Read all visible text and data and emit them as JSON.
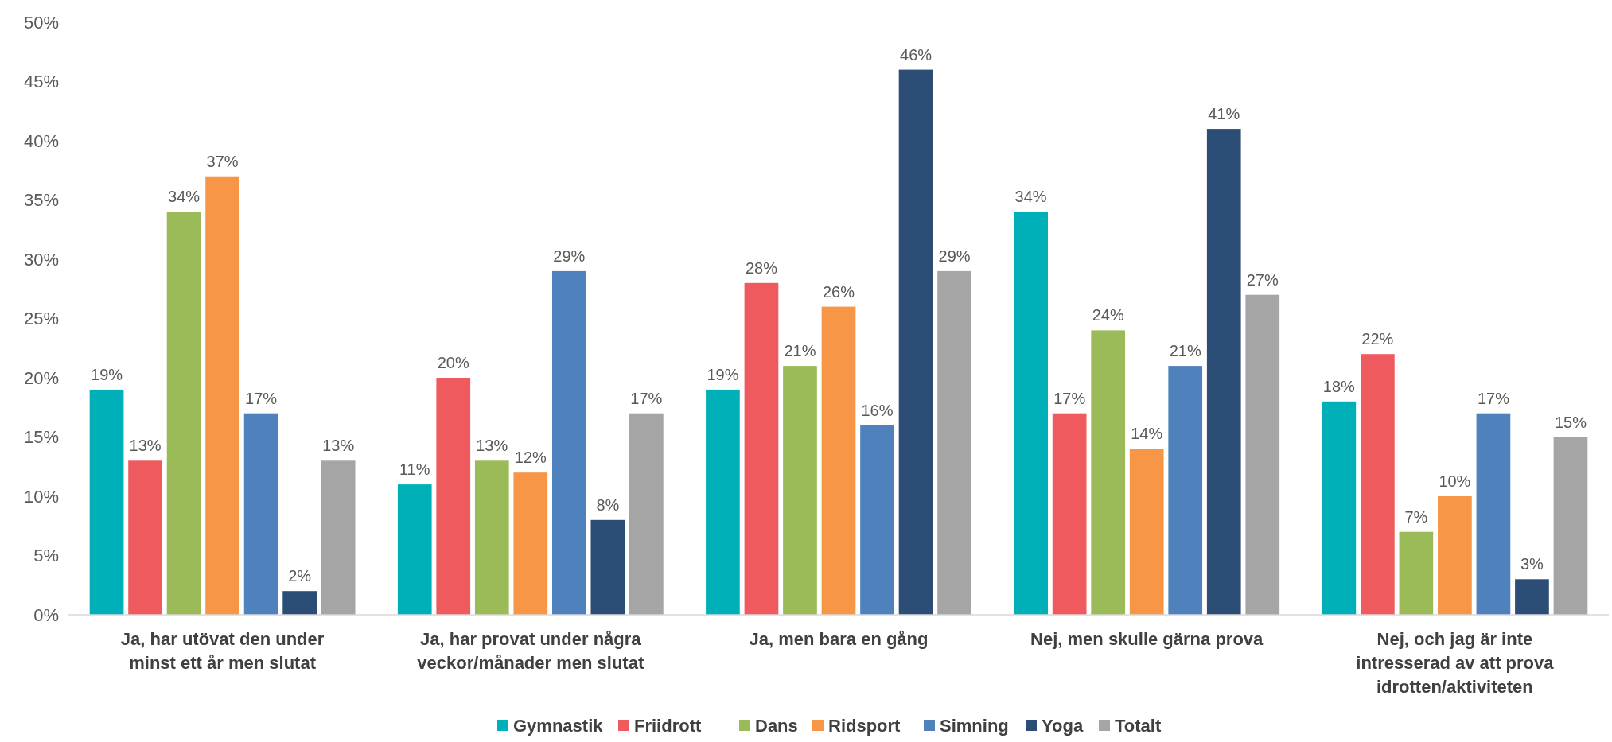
{
  "chart_data": {
    "type": "bar",
    "categories": [
      "Ja, har utövat den under minst ett år men slutat",
      "Ja, har provat under några veckor/månader men slutat",
      "Ja, men bara en gång",
      "Nej, men skulle gärna prova",
      "Nej, och jag är inte intresserad av att prova idrotten/aktiviteten"
    ],
    "series": [
      {
        "name": "Gymnastik",
        "color": "#00b0b9",
        "values": [
          19,
          11,
          19,
          34,
          18
        ],
        "value_labels": [
          "19%",
          "11%",
          "19%",
          "34%",
          "18%"
        ]
      },
      {
        "name": "Friidrott",
        "color": "#ef5a5f",
        "values": [
          13,
          20,
          28,
          17,
          22
        ],
        "value_labels": [
          "13%",
          "20%",
          "28%",
          "17%",
          "22%"
        ]
      },
      {
        "name": "Dans",
        "color": "#9bbb59",
        "values": [
          34,
          13,
          21,
          24,
          7
        ],
        "value_labels": [
          "34%",
          "13%",
          "21%",
          "24%",
          "7%"
        ]
      },
      {
        "name": "Ridsport",
        "color": "#f79646",
        "values": [
          37,
          12,
          26,
          14,
          10
        ],
        "value_labels": [
          "37%",
          "12%",
          "26%",
          "14%",
          "10%"
        ]
      },
      {
        "name": "Simning",
        "color": "#4f81bd",
        "values": [
          17,
          29,
          16,
          21,
          17
        ],
        "value_labels": [
          "17%",
          "29%",
          "16%",
          "21%",
          "17%"
        ]
      },
      {
        "name": "Yoga",
        "color": "#2c4d75",
        "values": [
          2,
          8,
          46,
          41,
          3
        ],
        "value_labels": [
          "2%",
          "8%",
          "46%",
          "41%",
          "3%"
        ]
      },
      {
        "name": "Totalt",
        "color": "#a5a5a5",
        "values": [
          13,
          17,
          29,
          27,
          15
        ],
        "value_labels": [
          "13%",
          "17%",
          "29%",
          "27%",
          "15%"
        ]
      }
    ],
    "ylim": [
      0,
      50
    ],
    "yticks": [
      {
        "value": 0,
        "label": "0%"
      },
      {
        "value": 5,
        "label": "5%"
      },
      {
        "value": 10,
        "label": "10%"
      },
      {
        "value": 15,
        "label": "15%"
      },
      {
        "value": 20,
        "label": "20%"
      },
      {
        "value": 25,
        "label": "25%"
      },
      {
        "value": 30,
        "label": "30%"
      },
      {
        "value": 35,
        "label": "35%"
      },
      {
        "value": 40,
        "label": "40%"
      },
      {
        "value": 45,
        "label": "45%"
      },
      {
        "value": 50,
        "label": "50%"
      }
    ],
    "grid": false,
    "legend": "bottom"
  }
}
